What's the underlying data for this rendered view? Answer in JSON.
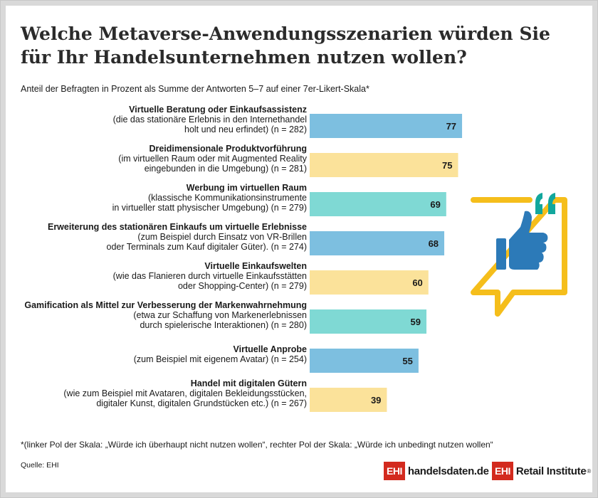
{
  "title": "Welche Metaverse-Anwendungsszenarien würden Sie für Ihr Handelsunternehmen nutzen wollen?",
  "subtitle": "Anteil der Befragten in Prozent als Summe der Antworten 5–7 auf einer 7er-Likert-Skala*",
  "footnote": "*(linker Pol der Skala:  „Würde ich überhaupt nicht nutzen wollen“, rechter Pol der Skala: „Würde ich unbedingt nutzen wollen“",
  "source": "Quelle: EHI",
  "logos": {
    "handelsdaten": {
      "box": "EHI",
      "text": "handelsdaten.de"
    },
    "retail_institute": {
      "box": "EHI",
      "text": "Retail Institute",
      "mark": "®"
    }
  },
  "icon": "thumbs-up-speech-bubble-icon",
  "colors": {
    "blue": "#7dbfe0",
    "yellow": "#fbe29a",
    "teal": "#7fd9d4",
    "icon_frame": "#f5be1b",
    "icon_quotes": "#12a79d",
    "icon_hand": "#2c7ab8",
    "logo_red": "#d32a1e"
  },
  "chart_data": {
    "type": "bar",
    "orientation": "horizontal",
    "unit": "%",
    "categories": [
      {
        "title": "Virtuelle Beratung oder Einkaufsassistenz",
        "detail": [
          "(die das stationäre Erlebnis in den Internethandel",
          "holt und neu erfindet) (n = 282)"
        ],
        "value": 77,
        "color": "#7dbfe0"
      },
      {
        "title": "Dreidimensionale Produktvorführung",
        "detail": [
          "(im virtuellen Raum oder mit Augmented Reality",
          "eingebunden in die Umgebung) (n = 281)"
        ],
        "value": 75,
        "color": "#fbe29a"
      },
      {
        "title": "Werbung im virtuellen Raum",
        "detail": [
          "(klassische Kommunikationsinstrumente",
          "in virtueller statt physischer Umgebung) (n = 279)"
        ],
        "value": 69,
        "color": "#7fd9d4"
      },
      {
        "title": "Erweiterung des stationären Einkaufs um virtuelle Erlebnisse",
        "detail": [
          "(zum Beispiel durch Einsatz von VR-Brillen",
          "oder Terminals zum Kauf digitaler Güter). (n = 274)"
        ],
        "value": 68,
        "color": "#7dbfe0"
      },
      {
        "title": "Virtuelle Einkaufswelten",
        "detail": [
          "(wie das Flanieren durch virtuelle Einkaufsstätten",
          "oder Shopping-Center) (n = 279)"
        ],
        "value": 60,
        "color": "#fbe29a"
      },
      {
        "title": "Gamification als Mittel zur Verbesserung der Markenwahrnehmung",
        "detail": [
          "(etwa zur Schaffung von Markenerlebnissen",
          "durch spielerische Interaktionen) (n = 280)"
        ],
        "value": 59,
        "color": "#7fd9d4"
      },
      {
        "title": "Virtuelle Anprobe",
        "detail": [
          "(zum Beispiel mit eigenem Avatar) (n = 254)"
        ],
        "value": 55,
        "color": "#7dbfe0"
      },
      {
        "title": "Handel mit digitalen Gütern",
        "detail": [
          "(wie zum Beispiel mit Avataren, digitalen Bekleidungsstücken,",
          "digitaler Kunst, digitalen Grundstücken etc.) (n = 267)"
        ],
        "value": 39,
        "color": "#fbe29a"
      }
    ],
    "xlim": [
      0,
      100
    ],
    "grid": false,
    "legend": "none"
  }
}
